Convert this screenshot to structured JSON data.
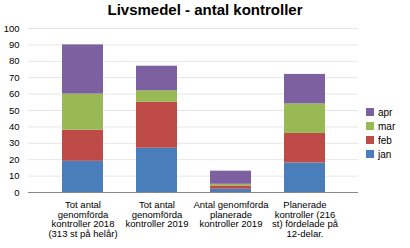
{
  "chart_data": {
    "type": "bar",
    "title": "Livsmedel - antal kontroller",
    "categories": [
      "Tot antal genomförda kontroller 2018 (313 st på helår)",
      "Tot antal genomförda kontroller 2019",
      "Antal genomförda planerade kontroller 2019",
      "Planerade kontroller (216 st) fördelade på 12-delar."
    ],
    "series": [
      {
        "name": "jan",
        "color": "#4a7ebb",
        "values": [
          19,
          27,
          2,
          18
        ]
      },
      {
        "name": "feb",
        "color": "#be4b48",
        "values": [
          19,
          28,
          2,
          18
        ]
      },
      {
        "name": "mar",
        "color": "#98b954",
        "values": [
          22,
          7,
          1,
          18
        ]
      },
      {
        "name": "apr",
        "color": "#7d60a0",
        "values": [
          30,
          15,
          8,
          18
        ]
      }
    ],
    "stacked": true,
    "ylim": [
      0,
      100
    ],
    "yticks": [
      0,
      10,
      20,
      30,
      40,
      50,
      60,
      70,
      80,
      90,
      100
    ],
    "grid": true,
    "legend": "right"
  }
}
